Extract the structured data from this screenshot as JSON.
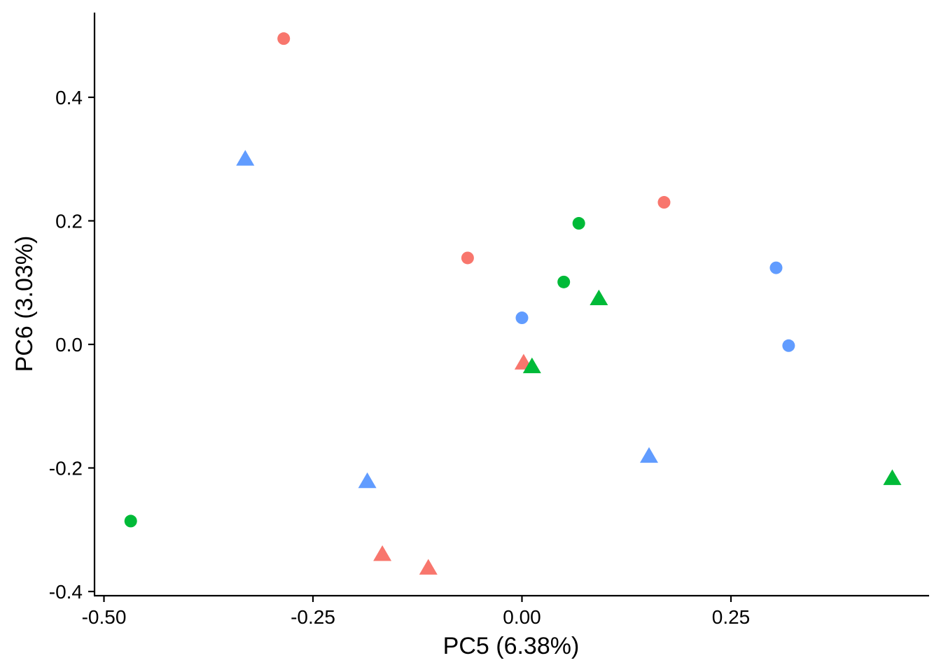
{
  "chart_data": {
    "type": "scatter",
    "title": "",
    "xlabel": "PC5 (6.38%)",
    "ylabel": "PC6 (3.03%)",
    "xlim": [
      -0.5,
      0.49
    ],
    "ylim": [
      -0.4,
      0.54
    ],
    "x_ticks": [
      -0.5,
      -0.25,
      0.0,
      0.25
    ],
    "x_tick_labels": [
      "-0.50",
      "-0.25",
      "0.00",
      "0.25"
    ],
    "y_ticks": [
      -0.4,
      -0.2,
      0.0,
      0.2,
      0.4
    ],
    "y_tick_labels": [
      "-0.4",
      "-0.2",
      "0.0",
      "0.2",
      "0.4"
    ],
    "grid": false,
    "legend": "none",
    "colors": {
      "red": "#F8766D",
      "green": "#00BA38",
      "blue": "#619CFF"
    },
    "points": [
      {
        "x": -0.285,
        "y": 0.495,
        "color": "red",
        "shape": "circle"
      },
      {
        "x": 0.17,
        "y": 0.23,
        "color": "red",
        "shape": "circle"
      },
      {
        "x": -0.065,
        "y": 0.14,
        "color": "red",
        "shape": "circle"
      },
      {
        "x": 0.002,
        "y": -0.03,
        "color": "red",
        "shape": "triangle"
      },
      {
        "x": -0.167,
        "y": -0.34,
        "color": "red",
        "shape": "triangle"
      },
      {
        "x": -0.112,
        "y": -0.362,
        "color": "red",
        "shape": "triangle"
      },
      {
        "x": 0.068,
        "y": 0.196,
        "color": "green",
        "shape": "circle"
      },
      {
        "x": 0.05,
        "y": 0.101,
        "color": "green",
        "shape": "circle"
      },
      {
        "x": -0.468,
        "y": -0.286,
        "color": "green",
        "shape": "circle"
      },
      {
        "x": 0.092,
        "y": 0.074,
        "color": "green",
        "shape": "triangle"
      },
      {
        "x": 0.012,
        "y": -0.036,
        "color": "green",
        "shape": "triangle"
      },
      {
        "x": 0.443,
        "y": -0.217,
        "color": "green",
        "shape": "triangle"
      },
      {
        "x": 0.0,
        "y": 0.043,
        "color": "blue",
        "shape": "circle"
      },
      {
        "x": 0.304,
        "y": 0.124,
        "color": "blue",
        "shape": "circle"
      },
      {
        "x": 0.319,
        "y": -0.002,
        "color": "blue",
        "shape": "circle"
      },
      {
        "x": -0.331,
        "y": 0.3,
        "color": "blue",
        "shape": "triangle"
      },
      {
        "x": -0.185,
        "y": -0.222,
        "color": "blue",
        "shape": "triangle"
      },
      {
        "x": 0.152,
        "y": -0.181,
        "color": "blue",
        "shape": "triangle"
      }
    ]
  }
}
